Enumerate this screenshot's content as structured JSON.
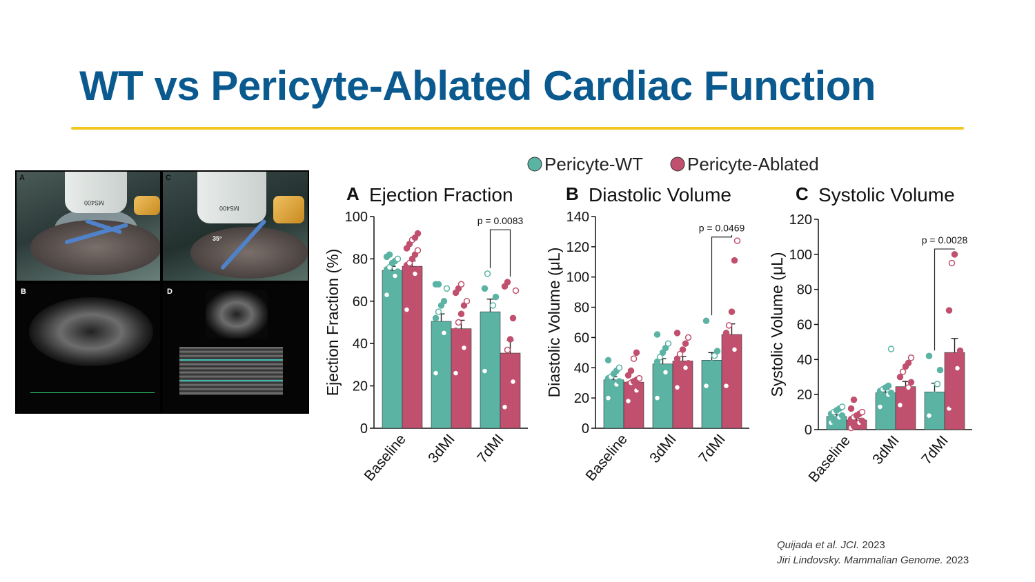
{
  "slide": {
    "title": "WT vs Pericyte-Ablated Cardiac Function",
    "accent_color": "#f3c620",
    "title_color": "#0a5a8f"
  },
  "photo_figure": {
    "labels": [
      "A",
      "B",
      "C",
      "D"
    ],
    "probe_text": "MS400",
    "angle_label": "35°"
  },
  "references": [
    {
      "authors": "Quijada et al. JCI.",
      "year": "2023"
    },
    {
      "authors": "Jiri Lindovsky. Mammalian Genome.",
      "year": "2023"
    }
  ],
  "chart_data": {
    "legend": [
      {
        "name": "Pericyte-WT",
        "color": "#5bb3a4"
      },
      {
        "name": "Pericyte-Ablated",
        "color": "#c0506e"
      }
    ],
    "panels": [
      {
        "letter": "A",
        "title": "Ejection Fraction",
        "type": "bar",
        "ylabel": "Ejection Fraction (%)",
        "ylim": [
          0,
          100
        ],
        "yticks": [
          0,
          20,
          40,
          60,
          80,
          100
        ],
        "categories": [
          "Baseline",
          "3dMI",
          "7dMI"
        ],
        "series": [
          {
            "name": "Pericyte-WT",
            "values": [
              74.5,
              50.5,
              55
            ],
            "sem": [
              2.0,
              3.5,
              6.0
            ],
            "points": [
              [
                63,
                67,
                70,
                72,
                74,
                75,
                76,
                78,
                79,
                80,
                81,
                82
              ],
              [
                26,
                38,
                42,
                45,
                48,
                52,
                55,
                58,
                60,
                66,
                68,
                68
              ],
              [
                27,
                46,
                53,
                58,
                62,
                66,
                73
              ]
            ]
          },
          {
            "name": "Pericyte-Ablated",
            "values": [
              76.5,
              47,
              35.5
            ],
            "sem": [
              2.5,
              4.0,
              6.0
            ],
            "points": [
              [
                56,
                66,
                70,
                73,
                75,
                77,
                78,
                80,
                82,
                84,
                85,
                87,
                89,
                90,
                92
              ],
              [
                26,
                30,
                34,
                38,
                42,
                46,
                50,
                54,
                58,
                60,
                64,
                66,
                68
              ],
              [
                10,
                13,
                17,
                22,
                28,
                33,
                37,
                42,
                52,
                65,
                67,
                69
              ]
            ]
          }
        ],
        "significance": {
          "label": "p = 0.0083",
          "group": "7dMI",
          "y": 97
        }
      },
      {
        "letter": "B",
        "title": "Diastolic Volume",
        "type": "bar",
        "ylabel": "Diastolic Volume (μL)",
        "ylim": [
          0,
          140
        ],
        "yticks": [
          0,
          20,
          40,
          60,
          80,
          100,
          120,
          140
        ],
        "categories": [
          "Baseline",
          "3dMI",
          "7dMI"
        ],
        "series": [
          {
            "name": "Pericyte-WT",
            "values": [
              32,
              42.5,
              45
            ],
            "sem": [
              2.0,
              3.5,
              5.0
            ],
            "points": [
              [
                20,
                24,
                27,
                29,
                31,
                33,
                34,
                36,
                38,
                40,
                45
              ],
              [
                20,
                28,
                33,
                37,
                40,
                44,
                47,
                50,
                53,
                56,
                62
              ],
              [
                28,
                37,
                43,
                48,
                51,
                71
              ]
            ]
          },
          {
            "name": "Pericyte-Ablated",
            "values": [
              30.5,
              44.5,
              62
            ],
            "sem": [
              1.5,
              3.0,
              7.0
            ],
            "points": [
              [
                18,
                21,
                23,
                25,
                27,
                29,
                30,
                31,
                32,
                33,
                35,
                38,
                46,
                50
              ],
              [
                27,
                32,
                36,
                40,
                43,
                46,
                49,
                52,
                56,
                60,
                63
              ],
              [
                28,
                38,
                45,
                52,
                58,
                63,
                68,
                77,
                111,
                124
              ]
            ]
          }
        ],
        "significance": {
          "label": "p = 0.0469",
          "group": "7dMI",
          "y": 131
        }
      },
      {
        "letter": "C",
        "title": "Systolic Volume",
        "type": "bar",
        "ylabel": "Systolic Volume (μL)",
        "ylim": [
          0,
          120
        ],
        "yticks": [
          0,
          20,
          40,
          60,
          80,
          100,
          120
        ],
        "categories": [
          "Baseline",
          "3dMI",
          "7dMI"
        ],
        "series": [
          {
            "name": "Pericyte-WT",
            "values": [
              7.5,
              21,
              21.5
            ],
            "sem": [
              1.0,
              2.0,
              5.0
            ],
            "points": [
              [
                4,
                5,
                6,
                7,
                8,
                9,
                10,
                11,
                12,
                13
              ],
              [
                13,
                16,
                18,
                20,
                21,
                22,
                23,
                24,
                25,
                46
              ],
              [
                8,
                14,
                20,
                26,
                34,
                42
              ]
            ]
          },
          {
            "name": "Pericyte-Ablated",
            "values": [
              5.5,
              24.5,
              44
            ],
            "sem": [
              1.0,
              3.0,
              8.0
            ],
            "points": [
              [
                1,
                2,
                3,
                4,
                5,
                6,
                7,
                8,
                9,
                10,
                12,
                17
              ],
              [
                14,
                17,
                20,
                24,
                27,
                30,
                33,
                36,
                38,
                41
              ],
              [
                12,
                14,
                25,
                35,
                45,
                68,
                95,
                100
              ]
            ]
          }
        ],
        "significance": {
          "label": "p = 0.0028",
          "group": "7dMI",
          "y": 107
        }
      }
    ]
  }
}
